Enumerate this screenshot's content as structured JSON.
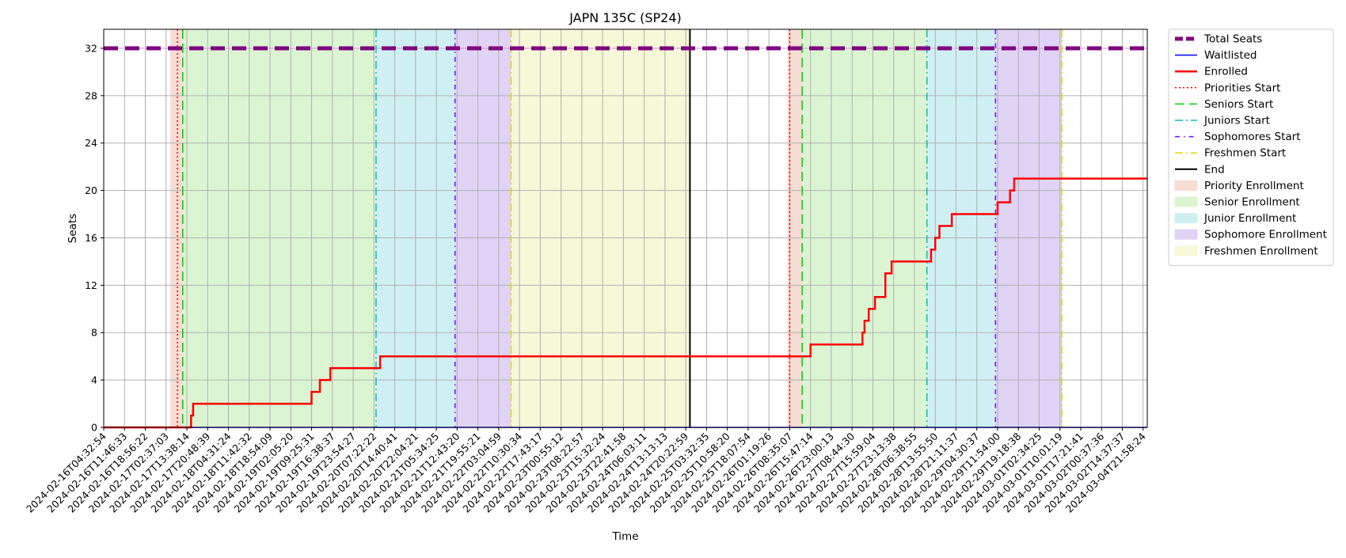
{
  "chart_data": {
    "type": "line",
    "title": "JAPN 135C (SP24)",
    "xlabel": "Time",
    "ylabel": "Seats",
    "ylim": [
      0,
      33.6
    ],
    "xlim": [
      0,
      50.2
    ],
    "yticks": [
      0,
      4,
      8,
      12,
      16,
      20,
      24,
      28,
      32
    ],
    "grid": true,
    "legend_position": "outside-right",
    "x_tick_labels": [
      "2024-02-16T04:32:54",
      "2024-02-16T11:46:33",
      "2024-02-16T18:56:22",
      "2024-02-17T02:37:03",
      "2024-02-17T13:38:14",
      "2024-02-17T20:48:39",
      "2024-02-18T04:31:24",
      "2024-02-18T11:42:32",
      "2024-02-18T18:54:09",
      "2024-02-19T02:05:20",
      "2024-02-19T09:25:31",
      "2024-02-19T16:38:37",
      "2024-02-19T23:54:27",
      "2024-02-20T07:22:22",
      "2024-02-20T14:40:41",
      "2024-02-20T22:04:21",
      "2024-02-21T05:34:25",
      "2024-02-21T12:43:20",
      "2024-02-21T19:55:21",
      "2024-02-22T03:04:59",
      "2024-02-22T10:30:34",
      "2024-02-22T17:43:17",
      "2024-02-23T00:55:12",
      "2024-02-23T08:22:57",
      "2024-02-23T15:32:24",
      "2024-02-23T22:41:58",
      "2024-02-24T06:03:11",
      "2024-02-24T13:13:13",
      "2024-02-24T20:22:59",
      "2024-02-25T03:32:35",
      "2024-02-25T10:58:20",
      "2024-02-25T18:07:54",
      "2024-02-26T01:19:26",
      "2024-02-26T08:35:07",
      "2024-02-26T15:47:14",
      "2024-02-26T23:00:13",
      "2024-02-27T08:44:30",
      "2024-02-27T15:59:04",
      "2024-02-27T23:13:38",
      "2024-02-28T06:38:55",
      "2024-02-28T13:55:50",
      "2024-02-28T21:11:37",
      "2024-02-29T04:30:37",
      "2024-02-29T11:54:00",
      "2024-02-29T19:18:38",
      "2024-03-01T02:34:25",
      "2024-03-01T10:01:19",
      "2024-03-01T17:21:41",
      "2024-03-02T00:37:36",
      "2024-03-02T14:37:37",
      "2024-03-04T21:58:24"
    ],
    "series": [
      {
        "name": "Total Seats",
        "color": "#800080",
        "style": "dashed",
        "x": [
          0,
          50.2
        ],
        "y": [
          32,
          32
        ]
      },
      {
        "name": "Waitlisted",
        "color": "#0000ff",
        "style": "solid",
        "x": [
          0,
          50.2
        ],
        "y": [
          0,
          0
        ]
      },
      {
        "name": "Enrolled",
        "color": "#ff0000",
        "style": "solid",
        "x": [
          0,
          4.2,
          4.2,
          4.3,
          4.3,
          10.0,
          10.0,
          10.4,
          10.4,
          10.9,
          10.9,
          13.3,
          13.3,
          34.0,
          34.0,
          36.5,
          36.5,
          36.6,
          36.6,
          36.8,
          36.8,
          37.1,
          37.1,
          37.6,
          37.6,
          37.9,
          37.9,
          39.8,
          39.8,
          40.0,
          40.0,
          40.2,
          40.2,
          40.8,
          40.8,
          43.0,
          43.0,
          43.6,
          43.6,
          43.8,
          43.8,
          50.2
        ],
        "y": [
          0,
          0,
          1,
          1,
          2,
          2,
          3,
          3,
          4,
          4,
          5,
          5,
          6,
          6,
          7,
          7,
          8,
          8,
          9,
          9,
          10,
          10,
          11,
          11,
          13,
          13,
          14,
          14,
          15,
          15,
          16,
          16,
          17,
          17,
          18,
          18,
          19,
          19,
          20,
          20,
          21,
          21
        ]
      }
    ],
    "vertical_markers": [
      {
        "name": "Priorities Start",
        "color": "#ff0000",
        "style": "dotted",
        "x": [
          3.55,
          33.0
        ]
      },
      {
        "name": "Seniors Start",
        "color": "#00cc00",
        "style": "dashed",
        "x": [
          3.8,
          33.6
        ]
      },
      {
        "name": "Juniors Start",
        "color": "#00bfbf",
        "style": "dashdot",
        "x": [
          13.1,
          39.6
        ]
      },
      {
        "name": "Sophomores Start",
        "color": "#6a0dff",
        "style": "dashdot-dense",
        "x": [
          16.9,
          42.9
        ]
      },
      {
        "name": "Freshmen Start",
        "color": "#dddd00",
        "style": "dashdot",
        "x": [
          19.6,
          46.1
        ]
      },
      {
        "name": "End",
        "color": "#000000",
        "style": "solid",
        "x": [
          28.2
        ]
      }
    ],
    "shaded_regions": [
      {
        "name": "Priority Enrollment",
        "color": "#f7ddd3",
        "ranges": [
          [
            3.2,
            3.8
          ],
          [
            32.9,
            33.6
          ]
        ]
      },
      {
        "name": "Senior Enrollment",
        "color": "#dbf5d3",
        "ranges": [
          [
            3.8,
            13.1
          ],
          [
            33.6,
            39.6
          ]
        ]
      },
      {
        "name": "Junior Enrollment",
        "color": "#cff0f3",
        "ranges": [
          [
            13.1,
            16.9
          ],
          [
            39.6,
            42.9
          ]
        ]
      },
      {
        "name": "Sophomore Enrollment",
        "color": "#e0d3f6",
        "ranges": [
          [
            16.9,
            19.6
          ],
          [
            42.9,
            46.1
          ]
        ]
      },
      {
        "name": "Freshmen Enrollment",
        "color": "#f6f8d7",
        "ranges": [
          [
            19.6,
            28.2
          ]
        ]
      }
    ]
  }
}
